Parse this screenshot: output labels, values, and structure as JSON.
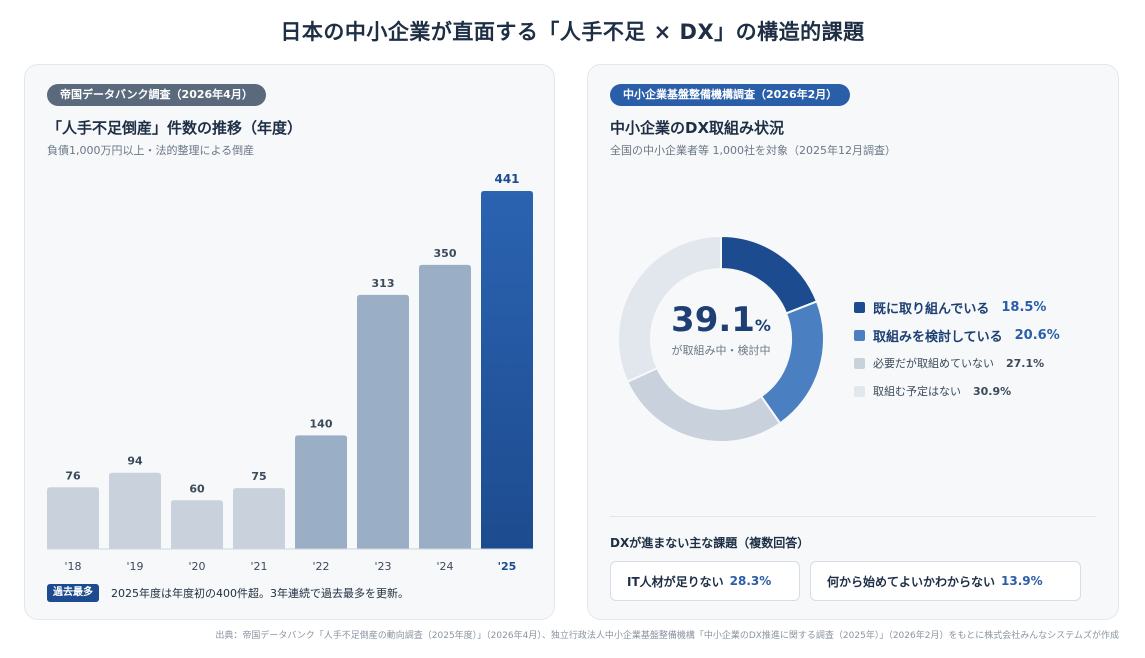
{
  "title": "日本の中小企業が直面する「人手不足 × DX」の構造的課題",
  "left_panel": {
    "badge": "帝国データバンク調査（2026年4月）",
    "title": "「人手不足倒産」件数の推移（年度）",
    "subtitle": "負債1,000万円以上・法的整理による倒産",
    "note_badge": "過去最多",
    "note": "2025年度は年度初の400件超。3年連続で過去最多を更新。"
  },
  "right_panel": {
    "badge": "中小企業基盤整備機構調査（2026年2月）",
    "title": "中小企業のDX取組み状況",
    "subtitle": "全国の中小企業者等 1,000社を対象（2025年12月調査）",
    "center_value": "39.1",
    "center_unit": "%",
    "center_label": "が取組み中・検討中",
    "issues_title": "DXが進まない主な課題（複数回答）",
    "issues": [
      {
        "label": "IT人材が足りない",
        "value": "28.3%"
      },
      {
        "label": "何から始めてよいかわからない",
        "value": "13.9%"
      }
    ]
  },
  "source": "出典：帝国データバンク「人手不足倒産の動向調査（2025年度）」（2026年4月）、独立行政法人中小企業基盤整備機構「中小企業のDX推進に関する調査（2025年）」（2026年2月）をもとに株式会社みんなシステムズが作成",
  "chart_data": [
    {
      "type": "bar",
      "title": "「人手不足倒産」件数の推移（年度）",
      "categories": [
        "'18",
        "'19",
        "'20",
        "'21",
        "'22",
        "'23",
        "'24",
        "'25"
      ],
      "values": [
        76,
        94,
        60,
        75,
        140,
        313,
        350,
        441
      ],
      "ylim": [
        0,
        441
      ],
      "grid": false,
      "colors": [
        "#c9d2dc",
        "#c9d2dc",
        "#c9d2dc",
        "#c9d2dc",
        "#9aafc6",
        "#9aafc6",
        "#9aafc6",
        "#1d4b8f"
      ]
    },
    {
      "type": "pie",
      "title": "中小企業のDX取組み状況",
      "labels": [
        "既に取り組んでいる",
        "取組みを検討している",
        "必要だが取組めていない",
        "取組む予定はない"
      ],
      "values": [
        18.5,
        20.6,
        27.1,
        30.9
      ],
      "value_labels": [
        "18.5%",
        "20.6%",
        "27.1%",
        "30.9%"
      ],
      "colors": [
        "#1d4b8f",
        "#4a7fc1",
        "#c9d2dc",
        "#e2e7ee"
      ],
      "legend": "right"
    }
  ]
}
